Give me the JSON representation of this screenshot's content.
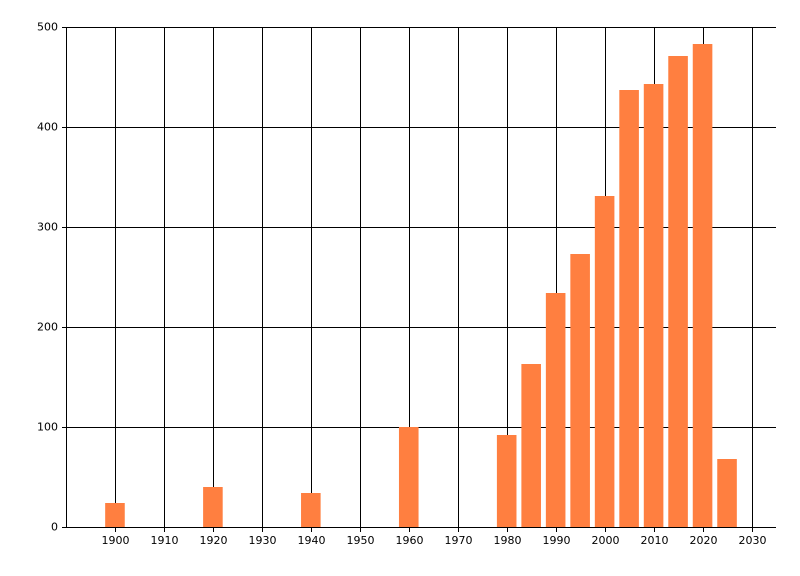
{
  "chart_data": {
    "type": "bar",
    "x": [
      1900,
      1920,
      1940,
      1960,
      1980,
      1985,
      1990,
      1995,
      2000,
      2005,
      2010,
      2015,
      2020,
      2025
    ],
    "values": [
      24,
      40,
      34,
      100,
      92,
      163,
      234,
      273,
      331,
      437,
      443,
      471,
      483,
      68
    ],
    "color": "#ff7f40",
    "xlim": [
      1890,
      2035
    ],
    "xticks": [
      1900,
      1910,
      1920,
      1930,
      1940,
      1950,
      1960,
      1970,
      1980,
      1990,
      2000,
      2010,
      2020,
      2030
    ],
    "ylim": [
      0,
      500
    ],
    "yticks": [
      0,
      100,
      200,
      300,
      400,
      500
    ],
    "grid": true
  }
}
